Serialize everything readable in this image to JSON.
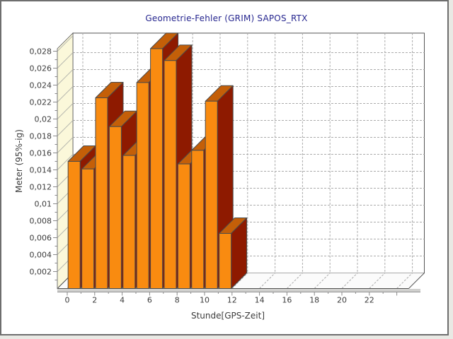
{
  "chart_data": {
    "type": "bar",
    "style": "3d-bar",
    "title": "Geometrie-Fehler (GRIM) SAPOS_RTX",
    "xlabel": "Stunde[GPS-Zeit]",
    "ylabel": "Meter (95%-ig)",
    "categories": [
      0,
      1,
      2,
      3,
      4,
      5,
      6,
      7,
      8,
      9,
      10,
      11
    ],
    "values": [
      0.015,
      0.0141,
      0.0225,
      0.0191,
      0.0157,
      0.0243,
      0.0283,
      0.0269,
      0.0147,
      0.0163,
      0.0221,
      0.0065
    ],
    "xlim": [
      0,
      24
    ],
    "ylim": [
      0,
      0.0283
    ],
    "x_tick_values": [
      0,
      2,
      4,
      6,
      8,
      10,
      12,
      14,
      16,
      18,
      20,
      22
    ],
    "x_tick_labels": [
      "0",
      "2",
      "4",
      "6",
      "8",
      "10",
      "12",
      "14",
      "16",
      "18",
      "20",
      "22"
    ],
    "y_tick_values": [
      0.002,
      0.004,
      0.006,
      0.008,
      0.01,
      0.012,
      0.014,
      0.016,
      0.018,
      0.02,
      0.022,
      0.024,
      0.026,
      0.028
    ],
    "y_tick_labels": [
      "0,002",
      "0,004",
      "0,006",
      "0,008",
      "0,01",
      "0,012",
      "0,014",
      "0,016",
      "0,018",
      "0,02",
      "0,022",
      "0,024",
      "0,026",
      "0,028"
    ],
    "grid": true,
    "legend": false,
    "decimal_separator": ","
  },
  "colors": {
    "title_text": "#26268F",
    "axis_text": "#3C3C3C",
    "bar_front": "#F98B10",
    "bar_side": "#8E1A00",
    "bar_top": "#C45F08",
    "bar_outline": "#4A4A4A",
    "left_wall": "#FBF8DA",
    "back_wall": "#FFFFFF",
    "floor": "#FBFBFB",
    "grid_line": "#ABABAB",
    "wall_hatch": "#B8B8B0",
    "wall_edge": "#555555",
    "axis_line": "#8A8A8A",
    "slab_band": "#D0D0CE",
    "slab_edge": "#909090"
  }
}
